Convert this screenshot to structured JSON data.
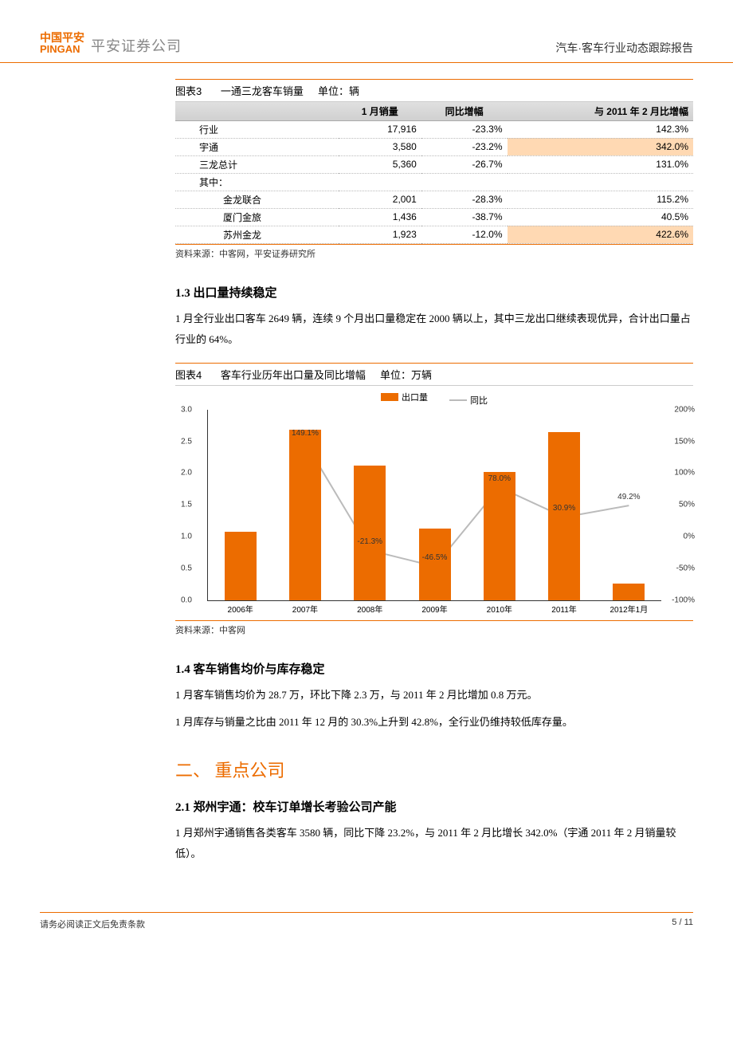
{
  "header": {
    "logo_cn": "中国平安",
    "logo_en": "PINGAN",
    "logo_company": "平安证券公司",
    "doc_title": "汽车·客车行业动态跟踪报告"
  },
  "table3": {
    "label": "图表3",
    "title": "一通三龙客车销量",
    "unit": "单位：辆",
    "columns": [
      "",
      "1 月销量",
      "同比增幅",
      "与 2011 年 2 月比增幅"
    ],
    "rows": [
      {
        "name": "行业",
        "c1": "17,916",
        "c2": "-23.3%",
        "c3": "142.3%",
        "indent": 1,
        "hl3": false
      },
      {
        "name": "宇通",
        "c1": "3,580",
        "c2": "-23.2%",
        "c3": "342.0%",
        "indent": 1,
        "hl3": true
      },
      {
        "name": "三龙总计",
        "c1": "5,360",
        "c2": "-26.7%",
        "c3": "131.0%",
        "indent": 1,
        "hl3": false
      },
      {
        "name": "其中：",
        "c1": "",
        "c2": "",
        "c3": "",
        "indent": 1,
        "hl3": false
      },
      {
        "name": "金龙联合",
        "c1": "2,001",
        "c2": "-28.3%",
        "c3": "115.2%",
        "indent": 2,
        "hl3": false
      },
      {
        "name": "厦门金旅",
        "c1": "1,436",
        "c2": "-38.7%",
        "c3": "40.5%",
        "indent": 2,
        "hl3": false
      },
      {
        "name": "苏州金龙",
        "c1": "1,923",
        "c2": "-12.0%",
        "c3": "422.6%",
        "indent": 2,
        "hl3": true
      }
    ],
    "source": "资料来源：中客网，平安证券研究所"
  },
  "sec13": {
    "heading": "1.3 出口量持续稳定",
    "body": "1 月全行业出口客车 2649 辆，连续 9 个月出口量稳定在 2000 辆以上，其中三龙出口继续表现优异，合计出口量占行业的 64%。"
  },
  "chart4": {
    "label": "图表4",
    "title": "客车行业历年出口量及同比增幅",
    "unit": "单位：万辆",
    "legend_bar": "出口量",
    "legend_line": "同比",
    "bar_color": "#ec6c00",
    "line_color": "#bbbbbb",
    "y_left": {
      "min": 0.0,
      "max": 3.0,
      "step": 0.5
    },
    "y_right": {
      "min": -100,
      "max": 200,
      "step": 50
    },
    "categories": [
      "2006年",
      "2007年",
      "2008年",
      "2009年",
      "2010年",
      "2011年",
      "2012年1月"
    ],
    "bar_values": [
      1.08,
      2.68,
      2.12,
      1.13,
      2.02,
      2.65,
      0.26
    ],
    "line_values": [
      null,
      149.1,
      -21.3,
      -46.5,
      78.0,
      30.9,
      49.2
    ],
    "line_labels": [
      "",
      "149.1%",
      "-21.3%",
      "-46.5%",
      "78.0%",
      "30.9%",
      "49.2%"
    ],
    "source": "资料来源：中客网"
  },
  "sec14": {
    "heading": "1.4 客车销售均价与库存稳定",
    "p1": "1 月客车销售均价为 28.7 万，环比下降 2.3 万，与 2011 年 2 月比增加 0.8 万元。",
    "p2": "1 月库存与销量之比由 2011 年 12 月的 30.3%上升到 42.8%，全行业仍维持较低库存量。"
  },
  "sec2": {
    "heading": "二、 重点公司",
    "sub": "2.1 郑州宇通：校车订单增长考验公司产能",
    "body": "1 月郑州宇通销售各类客车 3580 辆，同比下降 23.2%，与 2011 年 2 月比增长 342.0%（宇通 2011 年 2 月销量较低）。"
  },
  "footer": {
    "left": "请务必阅读正文后免责条款",
    "right": "5 / 11"
  }
}
